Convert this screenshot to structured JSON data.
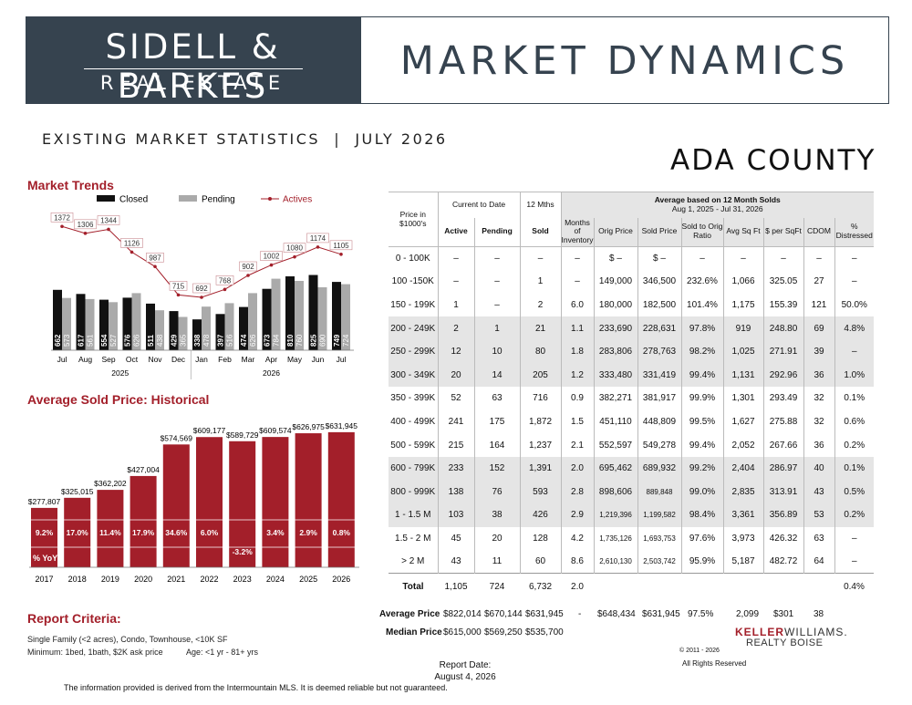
{
  "header": {
    "logo_line1": "SIDELL & BARKES",
    "logo_line2": "REAL ESTATE",
    "title": "MARKET DYNAMICS",
    "subtitle": "EXISTING MARKET STATISTICS  |  JULY 2026",
    "county": "ADA COUNTY"
  },
  "market_trends": {
    "title": "Market Trends",
    "legend": {
      "closed": "Closed",
      "pending": "Pending",
      "actives": "Actives"
    },
    "colors": {
      "closed": "#111111",
      "pending": "#aaaaaa",
      "actives": "#a31f2a"
    },
    "chart_data": {
      "type": "bar",
      "categories": [
        "Jul",
        "Aug",
        "Sep",
        "Oct",
        "Nov",
        "Dec",
        "Jan",
        "Feb",
        "Mar",
        "Apr",
        "May",
        "Jun",
        "Jul"
      ],
      "year_labels": [
        "2025",
        "2026"
      ],
      "series": [
        {
          "name": "Closed",
          "values": [
            662,
            617,
            554,
            576,
            511,
            429,
            338,
            397,
            474,
            673,
            810,
            825,
            749
          ]
        },
        {
          "name": "Pending",
          "values": [
            573,
            561,
            527,
            626,
            438,
            365,
            478,
            516,
            626,
            784,
            760,
            690,
            724
          ]
        },
        {
          "name": "Actives",
          "values": [
            1372,
            1306,
            1344,
            1126,
            987,
            715,
            692,
            768,
            902,
            1002,
            1080,
            1174,
            1105
          ]
        }
      ]
    }
  },
  "avg_sold_price": {
    "title": "Average Sold Price: Historical",
    "yoy_label": "% YoY",
    "bar_color": "#a31f2a",
    "chart_data": {
      "type": "bar",
      "categories": [
        "2017",
        "2018",
        "2019",
        "2020",
        "2021",
        "2022",
        "2023",
        "2024",
        "2025",
        "2026"
      ],
      "values": [
        277807,
        325015,
        362202,
        427004,
        574569,
        609177,
        589729,
        609574,
        626975,
        631945
      ],
      "value_labels": [
        "$277,807",
        "$325,015",
        "$362,202",
        "$427,004",
        "$574,569",
        "$609,177",
        "$589,729",
        "$609,574",
        "$626,975",
        "$631,945"
      ],
      "yoy": [
        "9.2%",
        "17.0%",
        "11.4%",
        "17.9%",
        "34.6%",
        "6.0%",
        "-3.2%",
        "3.4%",
        "2.9%",
        "0.8%"
      ]
    }
  },
  "table": {
    "header_group_ctd": "Current to Date",
    "header_group_12": "12 Mths",
    "header_group_avg": "Average based on 12 Month Solds",
    "header_group_avg_sub": "Aug 1, 2025 - Jul 31, 2026",
    "columns": [
      "Price in $1000's",
      "Active",
      "Pending",
      "Sold",
      "Months of Inventory",
      "Orig Price",
      "Sold Price",
      "Sold to Orig Ratio",
      "Avg Sq Ft",
      "$ per SqFt",
      "CDOM",
      "% Distressed"
    ],
    "rows": [
      [
        "0 - 100K",
        "–",
        "–",
        "–",
        "–",
        "$ –",
        "$ –",
        "–",
        "–",
        "–",
        "–",
        "–"
      ],
      [
        "100 -150K",
        "–",
        "–",
        "1",
        "–",
        "149,000",
        "346,500",
        "232.6%",
        "1,066",
        "325.05",
        "27",
        "–"
      ],
      [
        "150 - 199K",
        "1",
        "–",
        "2",
        "6.0",
        "180,000",
        "182,500",
        "101.4%",
        "1,175",
        "155.39",
        "121",
        "50.0%"
      ],
      [
        "200 - 249K",
        "2",
        "1",
        "21",
        "1.1",
        "233,690",
        "228,631",
        "97.8%",
        "919",
        "248.80",
        "69",
        "4.8%"
      ],
      [
        "250 - 299K",
        "12",
        "10",
        "80",
        "1.8",
        "283,806",
        "278,763",
        "98.2%",
        "1,025",
        "271.91",
        "39",
        "–"
      ],
      [
        "300 - 349K",
        "20",
        "14",
        "205",
        "1.2",
        "333,480",
        "331,419",
        "99.4%",
        "1,131",
        "292.96",
        "36",
        "1.0%"
      ],
      [
        "350 - 399K",
        "52",
        "63",
        "716",
        "0.9",
        "382,271",
        "381,917",
        "99.9%",
        "1,301",
        "293.49",
        "32",
        "0.1%"
      ],
      [
        "400 - 499K",
        "241",
        "175",
        "1,872",
        "1.5",
        "451,110",
        "448,809",
        "99.5%",
        "1,627",
        "275.88",
        "32",
        "0.6%"
      ],
      [
        "500 - 599K",
        "215",
        "164",
        "1,237",
        "2.1",
        "552,597",
        "549,278",
        "99.4%",
        "2,052",
        "267.66",
        "36",
        "0.2%"
      ],
      [
        "600 - 799K",
        "233",
        "152",
        "1,391",
        "2.0",
        "695,462",
        "689,932",
        "99.2%",
        "2,404",
        "286.97",
        "40",
        "0.1%"
      ],
      [
        "800 - 999K",
        "138",
        "76",
        "593",
        "2.8",
        "898,606",
        "889,848",
        "99.0%",
        "2,835",
        "313.91",
        "43",
        "0.5%"
      ],
      [
        "1 - 1.5 M",
        "103",
        "38",
        "426",
        "2.9",
        "1,219,396",
        "1,199,582",
        "98.4%",
        "3,361",
        "356.89",
        "53",
        "0.2%"
      ],
      [
        "1.5 - 2 M",
        "45",
        "20",
        "128",
        "4.2",
        "1,735,126",
        "1,693,753",
        "97.6%",
        "3,973",
        "426.32",
        "63",
        "–"
      ],
      [
        "> 2 M",
        "43",
        "11",
        "60",
        "8.6",
        "2,610,130",
        "2,503,742",
        "95.9%",
        "5,187",
        "482.72",
        "64",
        "–"
      ]
    ],
    "total": [
      "Total",
      "1,105",
      "724",
      "6,732",
      "2.0",
      "",
      "",
      "",
      "",
      "",
      "",
      "0.4%"
    ],
    "average": {
      "label": "Average Price",
      "active": "$822,014",
      "pending": "$670,144",
      "sold": "$631,945",
      "moi": "-",
      "orig": "$648,434",
      "soldp": "$631,945",
      "ratio": "97.5%",
      "sqft": "2,099",
      "persqft": "$301",
      "cdom": "38"
    },
    "median": {
      "label": "Median Price",
      "active": "$615,000",
      "pending": "$569,250",
      "sold": "$535,700"
    }
  },
  "criteria": {
    "title": "Report Criteria:",
    "line1": "Single Family (<2 acres), Condo, Townhouse, <10K SF",
    "line2": "Minimum: 1bed, 1bath, $2K ask price",
    "line2b": "Age: <1 yr - 81+ yrs"
  },
  "footer": {
    "kw_brand_a": "KELLER",
    "kw_brand_b": "WILLIAMS.",
    "kw_sub": "REALTY BOISE",
    "copyright": "© 2011 - 2026",
    "rights": "All Rights Reserved",
    "report_date_label": "Report Date:",
    "report_date": "August 4, 2026",
    "disclaimer": "The information provided is derived from the Intermountain MLS. It is deemed reliable but not guaranteed."
  }
}
